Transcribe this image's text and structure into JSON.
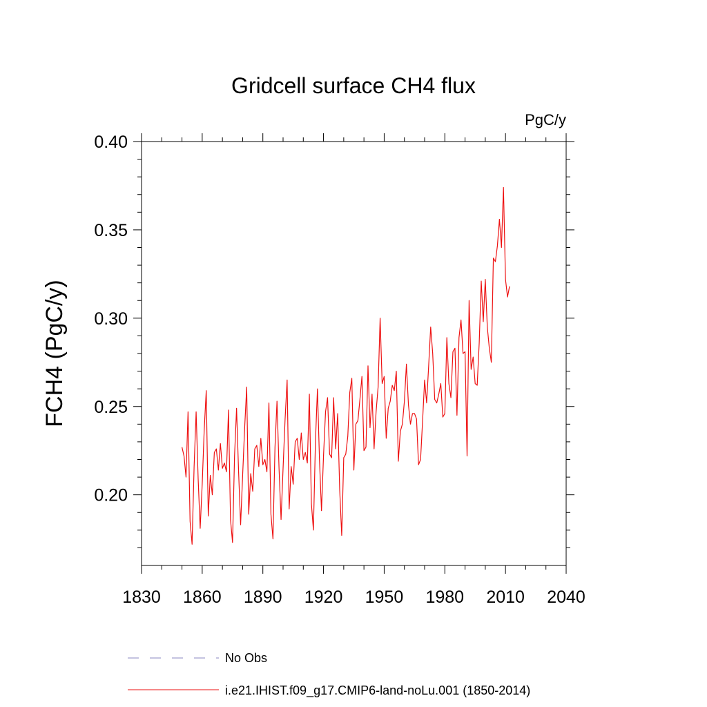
{
  "chart_data": {
    "type": "line",
    "title": "Gridcell surface CH4 flux",
    "units_label": "PgC/y",
    "ylabel": "FCH4  (PgC/y)",
    "xlabel": "",
    "xlim": [
      1830,
      2040
    ],
    "ylim": [
      0.16,
      0.4
    ],
    "x_ticks": [
      1830,
      1860,
      1890,
      1920,
      1950,
      1980,
      2010,
      2040
    ],
    "x_tick_labels": [
      "1830",
      "1860",
      "1890",
      "1920",
      "1950",
      "1980",
      "2010",
      "2040"
    ],
    "y_ticks": [
      0.2,
      0.25,
      0.3,
      0.35,
      0.4
    ],
    "y_tick_labels": [
      "0.20",
      "0.25",
      "0.30",
      "0.35",
      "0.40"
    ],
    "grid": false,
    "legend_position": "bottom",
    "legend": [
      {
        "label": "No Obs",
        "style": "dashed",
        "color": "#8a87c2"
      },
      {
        "label": "i.e21.IHIST.f09_g17.CMIP6-land-noLu.001 (1850-2014)",
        "style": "solid",
        "color": "#ee1111"
      }
    ],
    "series": [
      {
        "name": "i.e21.IHIST.f09_g17.CMIP6-land-noLu.001 (1850-2014)",
        "color": "#ee1111",
        "x_start": 1850,
        "x_step": 1,
        "values": [
          0.227,
          0.222,
          0.21,
          0.247,
          0.185,
          0.172,
          0.216,
          0.247,
          0.209,
          0.181,
          0.206,
          0.237,
          0.259,
          0.188,
          0.211,
          0.2,
          0.224,
          0.226,
          0.214,
          0.229,
          0.215,
          0.218,
          0.213,
          0.248,
          0.186,
          0.173,
          0.222,
          0.249,
          0.213,
          0.183,
          0.211,
          0.238,
          0.261,
          0.189,
          0.212,
          0.202,
          0.226,
          0.228,
          0.216,
          0.232,
          0.217,
          0.22,
          0.213,
          0.252,
          0.189,
          0.175,
          0.227,
          0.253,
          0.215,
          0.186,
          0.215,
          0.243,
          0.265,
          0.192,
          0.216,
          0.206,
          0.23,
          0.232,
          0.22,
          0.235,
          0.22,
          0.224,
          0.218,
          0.257,
          0.195,
          0.18,
          0.23,
          0.26,
          0.22,
          0.191,
          0.222,
          0.247,
          0.255,
          0.223,
          0.221,
          0.255,
          0.226,
          0.246,
          0.203,
          0.177,
          0.221,
          0.223,
          0.233,
          0.258,
          0.266,
          0.214,
          0.24,
          0.242,
          0.254,
          0.267,
          0.225,
          0.227,
          0.273,
          0.238,
          0.257,
          0.226,
          0.247,
          0.261,
          0.3,
          0.263,
          0.267,
          0.232,
          0.249,
          0.253,
          0.262,
          0.259,
          0.27,
          0.219,
          0.236,
          0.24,
          0.253,
          0.274,
          0.251,
          0.24,
          0.246,
          0.246,
          0.243,
          0.217,
          0.22,
          0.242,
          0.265,
          0.252,
          0.273,
          0.295,
          0.28,
          0.254,
          0.252,
          0.257,
          0.263,
          0.244,
          0.246,
          0.289,
          0.263,
          0.255,
          0.281,
          0.283,
          0.245,
          0.289,
          0.299,
          0.28,
          0.281,
          0.222,
          0.31,
          0.271,
          0.278,
          0.263,
          0.262,
          0.286,
          0.321,
          0.298,
          0.322,
          0.295,
          0.283,
          0.275,
          0.334,
          0.332,
          0.341,
          0.356,
          0.34,
          0.374,
          0.322,
          0.312,
          0.318
        ]
      }
    ]
  }
}
